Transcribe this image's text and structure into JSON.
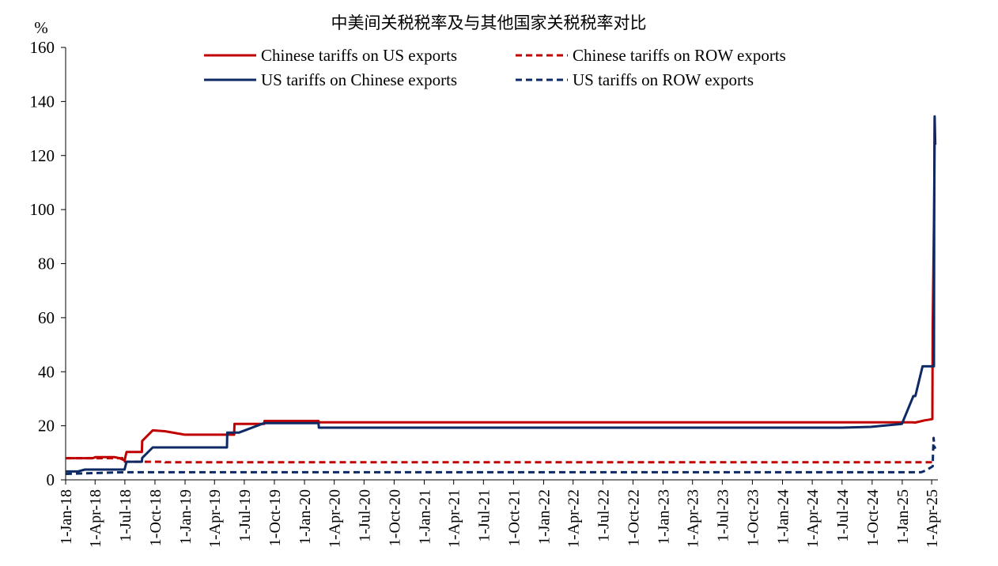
{
  "chart_data": {
    "type": "line",
    "title": "中美间关税税率及与其他国家关税税率对比",
    "ylabel": "%",
    "xlabel": "",
    "ylim": [
      0,
      160
    ],
    "yticks": [
      "0",
      "20",
      "40",
      "60",
      "80",
      "100",
      "120",
      "140",
      "160"
    ],
    "xlim": [
      "2018-01-01",
      "2025-04-20"
    ],
    "xticks": [
      {
        "date": "2018-01-01",
        "label": "1-Jan-18"
      },
      {
        "date": "2018-04-01",
        "label": "1-Apr-18"
      },
      {
        "date": "2018-07-01",
        "label": "1-Jul-18"
      },
      {
        "date": "2018-10-01",
        "label": "1-Oct-18"
      },
      {
        "date": "2019-01-01",
        "label": "1-Jan-19"
      },
      {
        "date": "2019-04-01",
        "label": "1-Apr-19"
      },
      {
        "date": "2019-07-01",
        "label": "1-Jul-19"
      },
      {
        "date": "2019-10-01",
        "label": "1-Oct-19"
      },
      {
        "date": "2020-01-01",
        "label": "1-Jan-20"
      },
      {
        "date": "2020-04-01",
        "label": "1-Apr-20"
      },
      {
        "date": "2020-07-01",
        "label": "1-Jul-20"
      },
      {
        "date": "2020-10-01",
        "label": "1-Oct-20"
      },
      {
        "date": "2021-01-01",
        "label": "1-Jan-21"
      },
      {
        "date": "2021-04-01",
        "label": "1-Apr-21"
      },
      {
        "date": "2021-07-01",
        "label": "1-Jul-21"
      },
      {
        "date": "2021-10-01",
        "label": "1-Oct-21"
      },
      {
        "date": "2022-01-01",
        "label": "1-Jan-22"
      },
      {
        "date": "2022-04-01",
        "label": "1-Apr-22"
      },
      {
        "date": "2022-07-01",
        "label": "1-Jul-22"
      },
      {
        "date": "2022-10-01",
        "label": "1-Oct-22"
      },
      {
        "date": "2023-01-01",
        "label": "1-Jan-23"
      },
      {
        "date": "2023-04-01",
        "label": "1-Apr-23"
      },
      {
        "date": "2023-07-01",
        "label": "1-Jul-23"
      },
      {
        "date": "2023-10-01",
        "label": "1-Oct-23"
      },
      {
        "date": "2024-01-01",
        "label": "1-Jan-24"
      },
      {
        "date": "2024-04-01",
        "label": "1-Apr-24"
      },
      {
        "date": "2024-07-01",
        "label": "1-Jul-24"
      },
      {
        "date": "2024-10-01",
        "label": "1-Oct-24"
      },
      {
        "date": "2025-01-01",
        "label": "1-Jan-25"
      },
      {
        "date": "2025-04-01",
        "label": "1-Apr-25"
      }
    ],
    "legend_position": "top",
    "grid": false,
    "series": [
      {
        "name": "Chinese tariffs on US exports",
        "color": "#c00000",
        "dash": "solid",
        "points": [
          [
            "2018-01-01",
            8.0
          ],
          [
            "2018-03-25",
            8.0
          ],
          [
            "2018-04-02",
            8.4
          ],
          [
            "2018-05-31",
            8.4
          ],
          [
            "2018-06-15",
            8.0
          ],
          [
            "2018-06-30",
            7.2
          ],
          [
            "2018-07-06",
            10.3
          ],
          [
            "2018-08-22",
            10.3
          ],
          [
            "2018-08-23",
            14.4
          ],
          [
            "2018-09-24",
            18.3
          ],
          [
            "2018-10-31",
            18.0
          ],
          [
            "2018-12-31",
            16.7
          ],
          [
            "2019-05-31",
            16.7
          ],
          [
            "2019-06-01",
            20.7
          ],
          [
            "2019-08-31",
            20.7
          ],
          [
            "2019-09-01",
            21.8
          ],
          [
            "2020-02-13",
            21.8
          ],
          [
            "2020-02-14",
            21.3
          ],
          [
            "2025-01-31",
            21.3
          ],
          [
            "2025-02-10",
            21.2
          ],
          [
            "2025-03-10",
            22.0
          ],
          [
            "2025-03-25",
            22.3
          ],
          [
            "2025-04-03",
            22.5
          ],
          [
            "2025-04-04",
            56.0
          ],
          [
            "2025-04-09",
            106.0
          ],
          [
            "2025-04-10",
            134.0
          ],
          [
            "2025-04-12",
            134.0
          ]
        ]
      },
      {
        "name": "Chinese tariffs on ROW exports",
        "color": "#c00000",
        "dash": "dashed",
        "points": [
          [
            "2018-01-01",
            8.0
          ],
          [
            "2018-06-30",
            8.0
          ],
          [
            "2018-07-01",
            6.7
          ],
          [
            "2018-10-31",
            6.7
          ],
          [
            "2018-11-01",
            6.5
          ],
          [
            "2025-04-12",
            6.5
          ]
        ]
      },
      {
        "name": "US tariffs on Chinese exports",
        "color": "#0d2a64",
        "dash": "solid",
        "points": [
          [
            "2018-01-01",
            3.1
          ],
          [
            "2018-02-07",
            3.1
          ],
          [
            "2018-03-01",
            3.8
          ],
          [
            "2018-06-30",
            3.8
          ],
          [
            "2018-07-06",
            6.7
          ],
          [
            "2018-08-22",
            6.7
          ],
          [
            "2018-08-23",
            8.1
          ],
          [
            "2018-09-24",
            12.0
          ],
          [
            "2019-05-09",
            12.0
          ],
          [
            "2019-05-10",
            17.5
          ],
          [
            "2019-06-15",
            17.5
          ],
          [
            "2019-08-31",
            21.0
          ],
          [
            "2020-02-13",
            21.0
          ],
          [
            "2020-02-14",
            19.3
          ],
          [
            "2024-06-30",
            19.3
          ],
          [
            "2024-09-27",
            19.6
          ],
          [
            "2024-12-31",
            20.7
          ],
          [
            "2025-02-04",
            31.0
          ],
          [
            "2025-02-10",
            31.0
          ],
          [
            "2025-03-04",
            42.0
          ],
          [
            "2025-04-08",
            42.0
          ],
          [
            "2025-04-09",
            106.0
          ],
          [
            "2025-04-10",
            134.5
          ],
          [
            "2025-04-12",
            124.0
          ]
        ]
      },
      {
        "name": "US tariffs on ROW exports",
        "color": "#0d2a64",
        "dash": "dashed",
        "points": [
          [
            "2018-01-01",
            2.2
          ],
          [
            "2018-06-30",
            2.8
          ],
          [
            "2025-02-28",
            2.8
          ],
          [
            "2025-03-15",
            3.5
          ],
          [
            "2025-04-04",
            5.0
          ],
          [
            "2025-04-05",
            9.5
          ],
          [
            "2025-04-07",
            15.5
          ],
          [
            "2025-04-09",
            12.5
          ],
          [
            "2025-04-12",
            11.5
          ]
        ]
      }
    ]
  }
}
